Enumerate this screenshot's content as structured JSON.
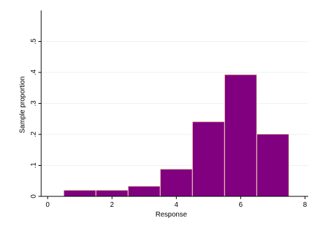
{
  "chart_data": {
    "type": "bar",
    "xlabel": "Response",
    "ylabel": "Sample proportion",
    "xlim": [
      -0.2,
      8.1
    ],
    "ylim": [
      0,
      0.6
    ],
    "grid": "horizontal",
    "bar_color": "#800080",
    "bar_edge_color": "#f5deb3",
    "grid_color": "#eaf2f3",
    "x_ticks": [
      {
        "value": 0,
        "label": "0"
      },
      {
        "value": 2,
        "label": "2"
      },
      {
        "value": 4,
        "label": "4"
      },
      {
        "value": 6,
        "label": "6"
      },
      {
        "value": 8,
        "label": "8"
      }
    ],
    "y_ticks": [
      {
        "value": 0,
        "label": "0"
      },
      {
        "value": 0.1,
        "label": ".1"
      },
      {
        "value": 0.2,
        "label": ".2"
      },
      {
        "value": 0.3,
        "label": ".3"
      },
      {
        "value": 0.4,
        "label": ".4"
      },
      {
        "value": 0.5,
        "label": ".5"
      }
    ],
    "bins": [
      {
        "x0": 0.5,
        "x1": 1.5,
        "value": 0.02
      },
      {
        "x0": 1.5,
        "x1": 2.5,
        "value": 0.02
      },
      {
        "x0": 2.5,
        "x1": 3.5,
        "value": 0.033
      },
      {
        "x0": 3.5,
        "x1": 4.5,
        "value": 0.088
      },
      {
        "x0": 4.5,
        "x1": 5.5,
        "value": 0.241
      },
      {
        "x0": 5.5,
        "x1": 6.5,
        "value": 0.393
      },
      {
        "x0": 6.5,
        "x1": 7.5,
        "value": 0.201
      }
    ]
  }
}
